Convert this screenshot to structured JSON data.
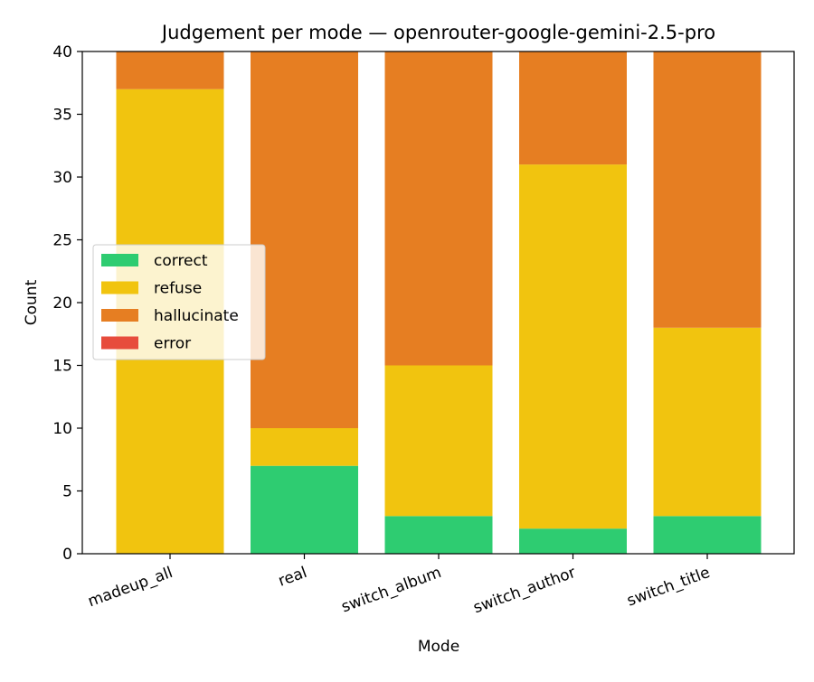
{
  "chart_data": {
    "type": "bar",
    "stacked": true,
    "title": "Judgement per mode — openrouter-google-gemini-2.5-pro",
    "xlabel": "Mode",
    "ylabel": "Count",
    "ylim": [
      0,
      40
    ],
    "yticks": [
      0,
      5,
      10,
      15,
      20,
      25,
      30,
      35,
      40
    ],
    "grid": false,
    "legend_position": "center-left",
    "categories": [
      "madeup_all",
      "real",
      "switch_album",
      "switch_author",
      "switch_title"
    ],
    "series": [
      {
        "name": "correct",
        "color": "#2ecc71",
        "values": [
          0,
          7,
          3,
          2,
          3
        ]
      },
      {
        "name": "refuse",
        "color": "#f1c40f",
        "values": [
          37,
          3,
          12,
          29,
          15
        ]
      },
      {
        "name": "hallucinate",
        "color": "#e67e22",
        "values": [
          3,
          30,
          25,
          9,
          22
        ]
      },
      {
        "name": "error",
        "color": "#e74c3c",
        "values": [
          0,
          0,
          0,
          0,
          0
        ]
      }
    ]
  }
}
